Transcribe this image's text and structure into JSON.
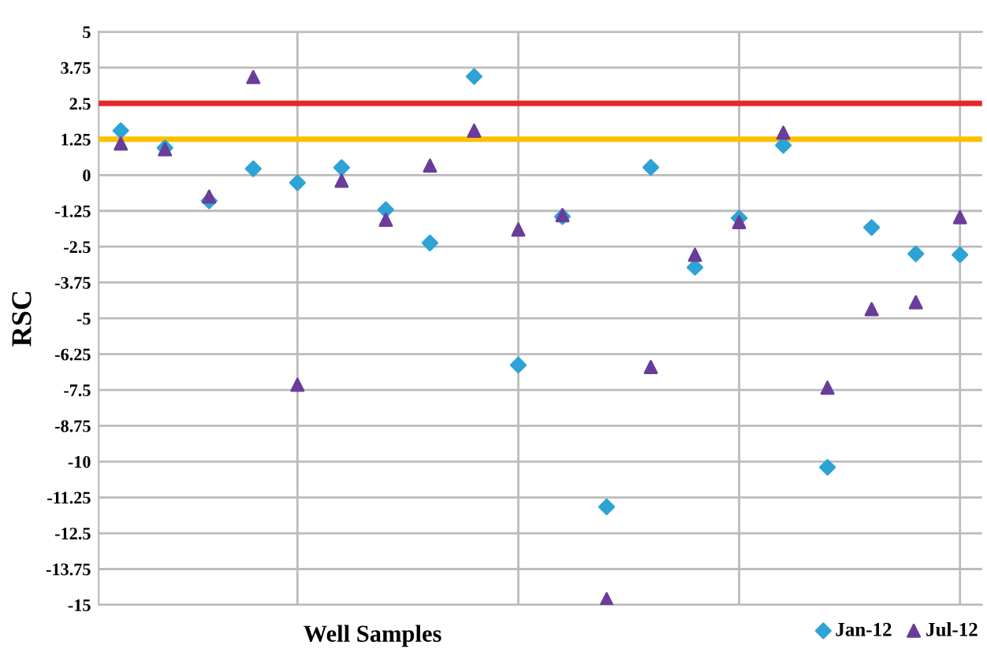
{
  "chart_data": {
    "type": "scatter",
    "xlabel": "Well Samples",
    "ylabel": "RSC",
    "categories": [
      null,
      null,
      null,
      null,
      null,
      null,
      null,
      null,
      null,
      null,
      null,
      null,
      null,
      null,
      null,
      null,
      null,
      null,
      null,
      null
    ],
    "series": [
      {
        "name": "Jan-12",
        "color": "#2ea3d5",
        "marker": "diamond",
        "values": [
          1.55,
          0.95,
          -0.9,
          0.22,
          -0.27,
          0.26,
          -1.21,
          -2.37,
          3.44,
          -6.63,
          -1.45,
          -11.58,
          0.27,
          -3.22,
          -1.5,
          1.04,
          -10.2,
          -1.83,
          -2.75,
          -2.78
        ]
      },
      {
        "name": "Jul-12",
        "color": "#6a3d9a",
        "marker": "triangle",
        "values": [
          1.1,
          0.9,
          -0.75,
          3.42,
          -7.32,
          -0.2,
          -1.56,
          0.33,
          1.55,
          -1.9,
          -1.4,
          -14.8,
          -6.7,
          -2.78,
          -1.64,
          1.48,
          -7.42,
          -4.68,
          -4.44,
          -1.47
        ]
      }
    ],
    "ref_lines": [
      {
        "axis": "y",
        "value": 2.5,
        "color": "#e8262a"
      },
      {
        "axis": "y",
        "value": 1.25,
        "color": "#ffc000"
      }
    ],
    "ylim": [
      -15,
      5
    ],
    "yticks": [
      5,
      3.75,
      2.5,
      1.25,
      0,
      -1.25,
      -2.5,
      -3.75,
      -5,
      -6.25,
      -7.5,
      -8.75,
      -10,
      -11.25,
      -12.5,
      -13.75,
      -15
    ],
    "tick_labels": "y",
    "grid": true,
    "legend": "bottom right"
  }
}
